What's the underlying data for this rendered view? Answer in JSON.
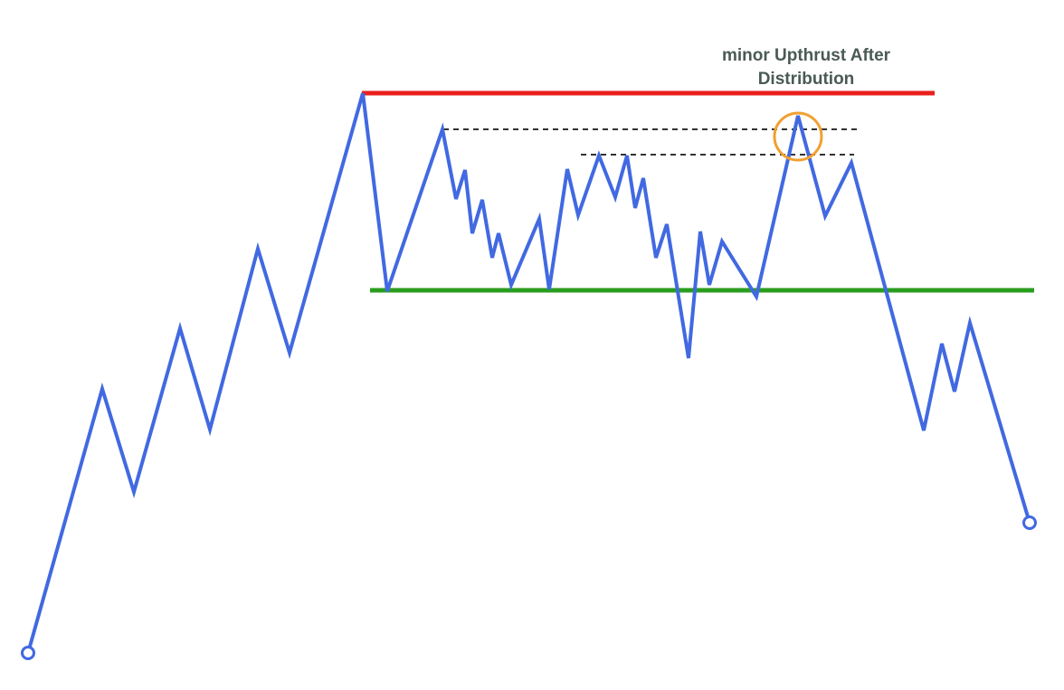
{
  "annotation": {
    "line1": "minor Upthrust After",
    "line2": "Distribution"
  },
  "colors": {
    "price_line": "#4169e1",
    "resistance": "#e8201e",
    "support": "#2a9d1e",
    "dashed": "#333333",
    "highlight": "#f0a030",
    "annotation_text": "#4a5a55",
    "endpoint_fill": "#ffffff"
  },
  "icons": {
    "start_marker": "circle-outline",
    "end_marker": "circle-outline"
  }
}
